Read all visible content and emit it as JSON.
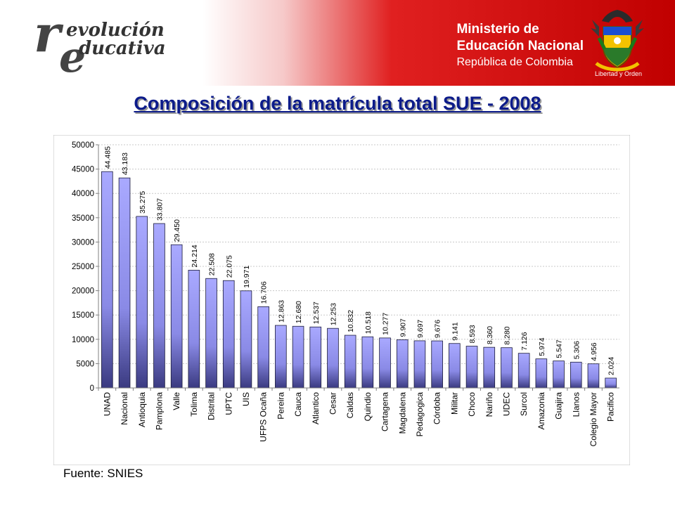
{
  "header": {
    "logo_line1": "evolución",
    "logo_line2": "ducativa",
    "ministry_line1": "Ministerio de",
    "ministry_line2": "Educación Nacional",
    "ministry_line3": "República de Colombia",
    "coat_caption": "Libertad y Orden"
  },
  "title": "Composición de la matrícula total SUE - 2008",
  "source": "Fuente: SNIES",
  "colors": {
    "header_red": "#c00000",
    "title": "#0c1b8a",
    "bar_light": "#a9a9ff",
    "bar_dark": "#3a3a80"
  },
  "chart_data": {
    "type": "bar",
    "title": "",
    "xlabel": "",
    "ylabel": "",
    "ylim": [
      0,
      50000
    ],
    "yticks": [
      0,
      5000,
      10000,
      15000,
      20000,
      25000,
      30000,
      35000,
      40000,
      45000,
      50000
    ],
    "grid": true,
    "categories": [
      "UNAD",
      "Nacional",
      "Antioquia",
      "Pamplona",
      "Valle",
      "Tolima",
      "Distrital",
      "UPTC",
      "UIS",
      "UFPS Ocaña",
      "Pereira",
      "Cauca",
      "Atlantico",
      "Cesar",
      "Caldas",
      "Quindio",
      "Cartagena",
      "Magdalena",
      "Pedagogica",
      "Córdoba",
      "Militar",
      "Choco",
      "Nariño",
      "UDEC",
      "Surcol",
      "Amazonia",
      "Guajira",
      "Llanos",
      "Colegio Mayor",
      "Pacifico"
    ],
    "values": [
      44485,
      43183,
      35275,
      33807,
      29450,
      24214,
      22508,
      22075,
      19971,
      16706,
      12863,
      12680,
      12537,
      12253,
      10832,
      10518,
      10277,
      9907,
      9697,
      9676,
      9141,
      8593,
      8360,
      8280,
      7126,
      5974,
      5547,
      5306,
      4956,
      2024
    ],
    "data_labels": [
      "44.485",
      "43.183",
      "35.275",
      "33.807",
      "29.450",
      "24.214",
      "22.508",
      "22.075",
      "19.971",
      "16.706",
      "12.863",
      "12.680",
      "12.537",
      "12.253",
      "10.832",
      "10.518",
      "10.277",
      "9.907",
      "9.697",
      "9.676",
      "9.141",
      "8.593",
      "8.360",
      "8.280",
      "7.126",
      "5.974",
      "5.547",
      "5.306",
      "4.956",
      "2.024"
    ]
  }
}
